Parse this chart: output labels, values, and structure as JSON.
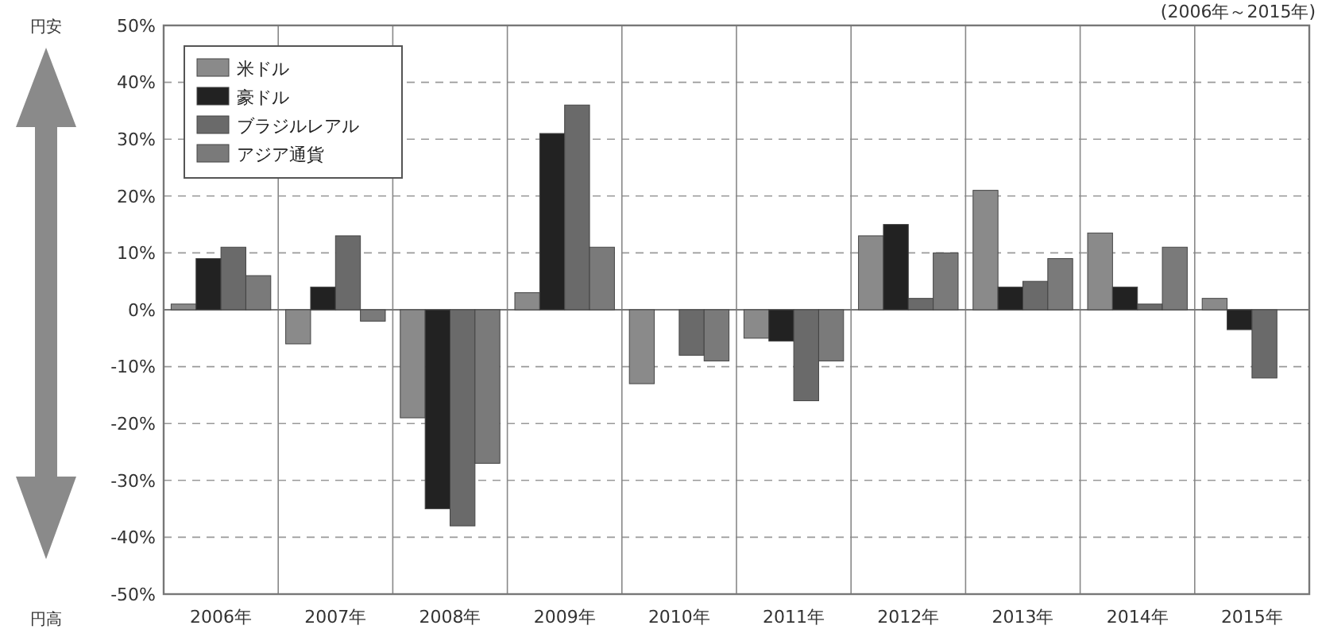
{
  "chart_data": {
    "type": "bar",
    "categories": [
      "2006年",
      "2007年",
      "2008年",
      "2009年",
      "2010年",
      "2011年",
      "2012年",
      "2013年",
      "2014年",
      "2015年"
    ],
    "series": [
      {
        "name": "米ドル",
        "color": "#8a8a8a",
        "values": [
          1,
          -6,
          -19,
          3,
          -13,
          -5,
          13,
          21,
          13.5,
          2
        ]
      },
      {
        "name": "豪ドル",
        "color": "#222222",
        "values": [
          9,
          4,
          -35,
          31,
          0,
          -5.5,
          15,
          4,
          4,
          -3.5
        ]
      },
      {
        "name": "ブラジルレアル",
        "color": "#6a6a6a",
        "values": [
          11,
          13,
          -38,
          36,
          -8,
          -16,
          2,
          5,
          1,
          -12
        ]
      },
      {
        "name": "アジア通貨",
        "color": "#7a7a7a",
        "values": [
          6,
          -2,
          -27,
          11,
          -9,
          -9,
          10,
          9,
          11,
          null
        ]
      }
    ],
    "ylim": [
      -50,
      50
    ],
    "yticks": [
      {
        "value": 50,
        "label": "50%"
      },
      {
        "value": 40,
        "label": "40%"
      },
      {
        "value": 30,
        "label": "30%"
      },
      {
        "value": 20,
        "label": "20%"
      },
      {
        "value": 10,
        "label": "10%"
      },
      {
        "value": 0,
        "label": "0%"
      },
      {
        "value": -10,
        "label": "-10%"
      },
      {
        "value": -20,
        "label": "-20%"
      },
      {
        "value": -30,
        "label": "-30%"
      },
      {
        "value": -40,
        "label": "-40%"
      },
      {
        "value": -50,
        "label": "-50%"
      }
    ],
    "grid": "y",
    "legend": "top left",
    "annotations": [
      "円安",
      "円高",
      "(2006年～2015年)"
    ]
  }
}
